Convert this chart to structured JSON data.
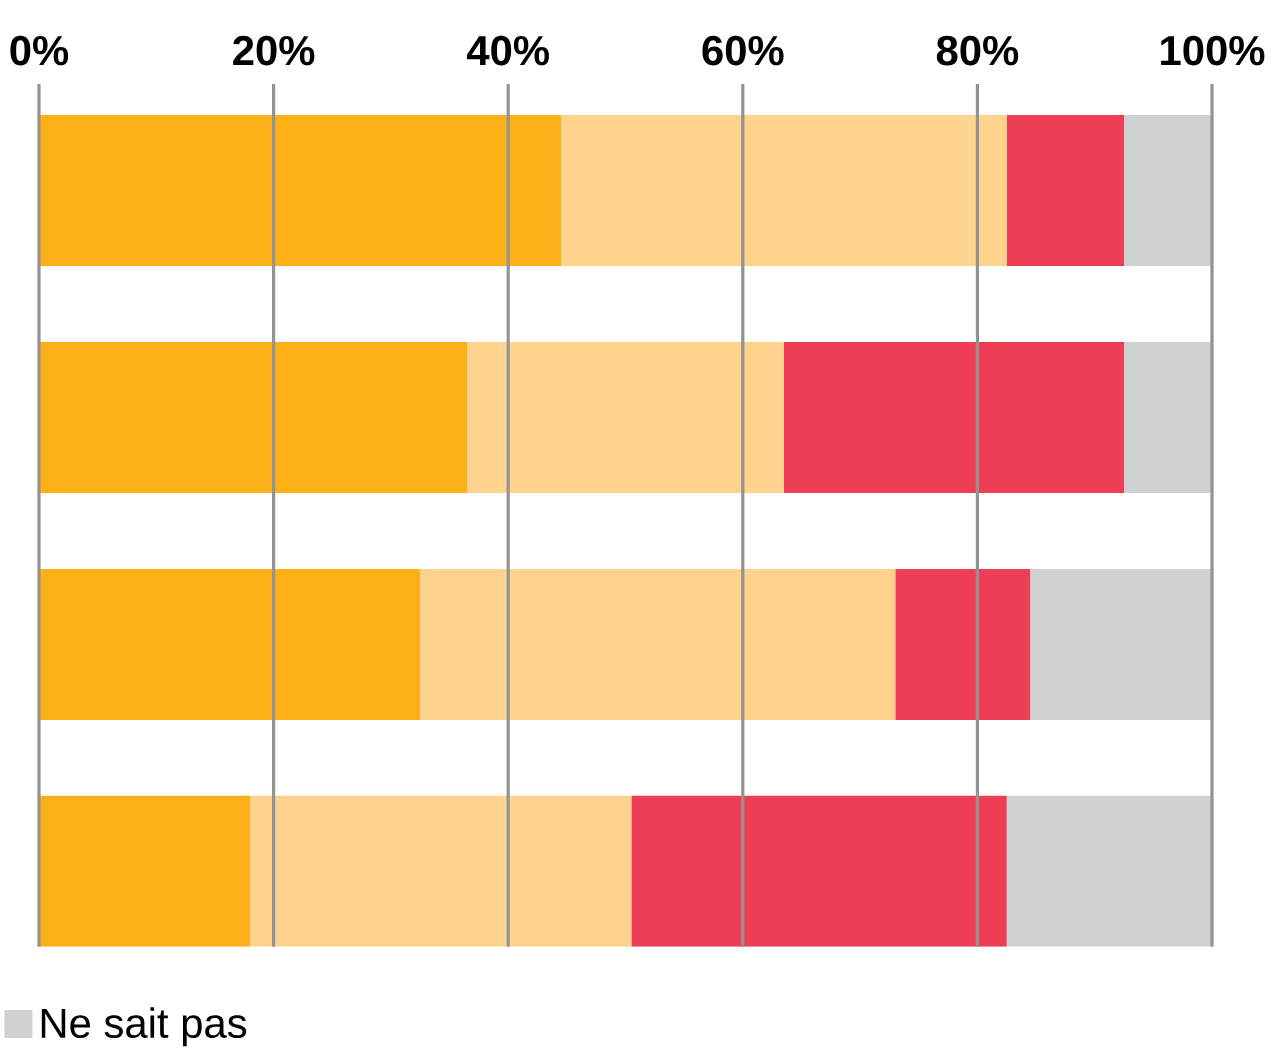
{
  "chart_data": {
    "type": "bar",
    "orientation": "horizontal",
    "stacked": true,
    "categories": [
      null,
      null,
      null,
      null
    ],
    "series": [
      {
        "color": "#fcaf17",
        "values": [
          44.5,
          36.5,
          32.5,
          18
        ]
      },
      {
        "color": "#fed38d",
        "values": [
          38,
          27,
          40.5,
          32.5
        ]
      },
      {
        "color": "#ee3e55",
        "values": [
          10,
          29,
          11.5,
          32
        ]
      },
      {
        "name": "Ne sait pas",
        "color": "#d0d1d3",
        "values": [
          7.5,
          7.5,
          15.5,
          17.5
        ]
      }
    ],
    "xlim": [
      0,
      100
    ],
    "xticks": [
      {
        "value": 0,
        "label": "0%"
      },
      {
        "value": 20,
        "label": "20%"
      },
      {
        "value": 40,
        "label": "40%"
      },
      {
        "value": 60,
        "label": "60%"
      },
      {
        "value": 80,
        "label": "80%"
      },
      {
        "value": 100,
        "label": "100%"
      }
    ],
    "grid": "x",
    "legend": "bottom left"
  }
}
